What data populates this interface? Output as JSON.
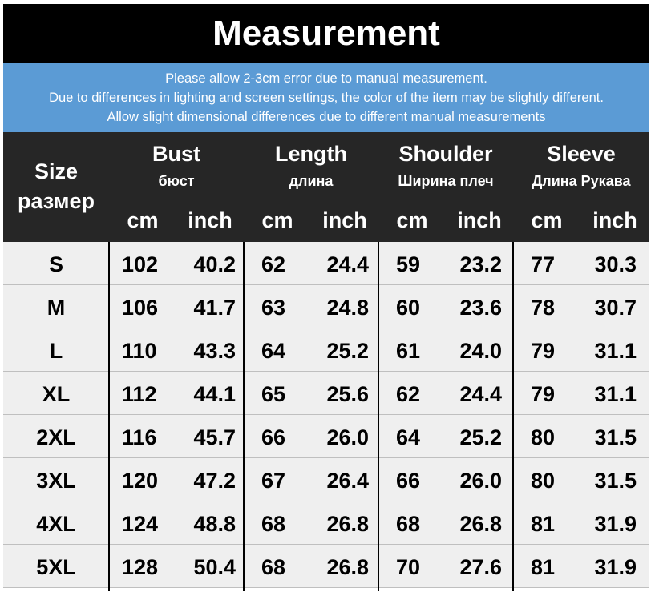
{
  "title": "Measurement",
  "notice": [
    "Please allow 2-3cm error due to manual measurement.",
    "Due to differences in lighting and screen settings, the color of the item may be slightly different.",
    "Allow slight dimensional differences due to different manual measurements"
  ],
  "header": {
    "size": {
      "en": "Size",
      "ru": "размер"
    },
    "bust": {
      "en": "Bust",
      "ru": "бюст"
    },
    "length": {
      "en": "Length",
      "ru": "длина"
    },
    "shoulder": {
      "en": "Shoulder",
      "ru": "Ширина плеч"
    },
    "sleeve": {
      "en": "Sleeve",
      "ru": "Длина Рукава"
    },
    "cm": "cm",
    "inch": "inch"
  },
  "rows": [
    {
      "size": "S",
      "bust_cm": "102",
      "bust_in": "40.2",
      "length_cm": "62",
      "length_in": "24.4",
      "shoulder_cm": "59",
      "shoulder_in": "23.2",
      "sleeve_cm": "77",
      "sleeve_in": "30.3"
    },
    {
      "size": "M",
      "bust_cm": "106",
      "bust_in": "41.7",
      "length_cm": "63",
      "length_in": "24.8",
      "shoulder_cm": "60",
      "shoulder_in": "23.6",
      "sleeve_cm": "78",
      "sleeve_in": "30.7"
    },
    {
      "size": "L",
      "bust_cm": "110",
      "bust_in": "43.3",
      "length_cm": "64",
      "length_in": "25.2",
      "shoulder_cm": "61",
      "shoulder_in": "24.0",
      "sleeve_cm": "79",
      "sleeve_in": "31.1"
    },
    {
      "size": "XL",
      "bust_cm": "112",
      "bust_in": "44.1",
      "length_cm": "65",
      "length_in": "25.6",
      "shoulder_cm": "62",
      "shoulder_in": "24.4",
      "sleeve_cm": "79",
      "sleeve_in": "31.1"
    },
    {
      "size": "2XL",
      "bust_cm": "116",
      "bust_in": "45.7",
      "length_cm": "66",
      "length_in": "26.0",
      "shoulder_cm": "64",
      "shoulder_in": "25.2",
      "sleeve_cm": "80",
      "sleeve_in": "31.5"
    },
    {
      "size": "3XL",
      "bust_cm": "120",
      "bust_in": "47.2",
      "length_cm": "67",
      "length_in": "26.4",
      "shoulder_cm": "66",
      "shoulder_in": "26.0",
      "sleeve_cm": "80",
      "sleeve_in": "31.5"
    },
    {
      "size": "4XL",
      "bust_cm": "124",
      "bust_in": "48.8",
      "length_cm": "68",
      "length_in": "26.8",
      "shoulder_cm": "68",
      "shoulder_in": "26.8",
      "sleeve_cm": "81",
      "sleeve_in": "31.9"
    },
    {
      "size": "5XL",
      "bust_cm": "128",
      "bust_in": "50.4",
      "length_cm": "68",
      "length_in": "26.8",
      "shoulder_cm": "70",
      "shoulder_in": "27.6",
      "sleeve_cm": "81",
      "sleeve_in": "31.9"
    }
  ]
}
